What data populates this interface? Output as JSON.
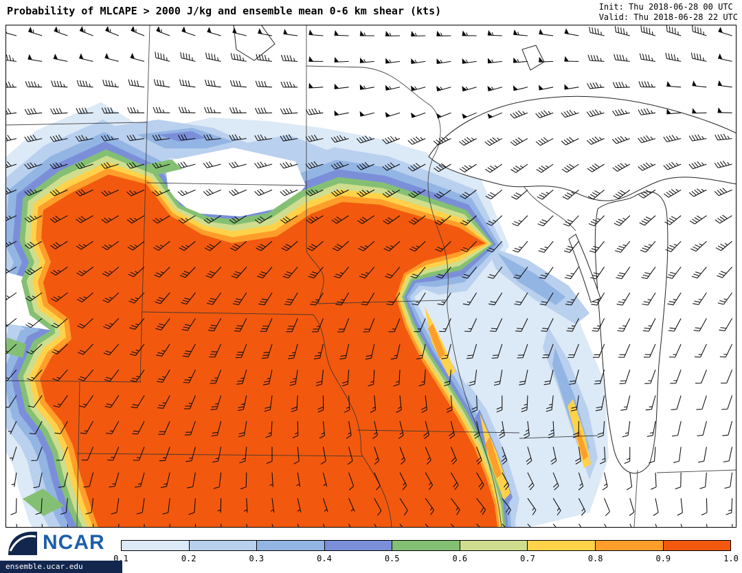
{
  "header": {
    "title": "Probability of MLCAPE > 2000 J/kg and ensemble mean 0-6 km shear (kts)",
    "init_line": "Init: Thu 2018-06-28 00 UTC",
    "valid_line": "Valid: Thu 2018-06-28 22 UTC"
  },
  "footer": {
    "logo_text": "NCAR",
    "site_url": "ensemble.ucar.edu"
  },
  "chart_data": {
    "type": "heatmap",
    "title": "Probability of MLCAPE > 2000 J/kg and ensemble mean 0-6 km shear (kts)",
    "init_time": "Thu 2018-06-28 00 UTC",
    "valid_time": "Thu 2018-06-28 22 UTC",
    "field": "Probability of MLCAPE > 2000 J/kg (shaded)",
    "overlay": "Ensemble mean 0-6 km shear plotted as wind barbs (kts)",
    "region": "Upper Midwest / Northern Plains USA (Dakotas, Nebraska, Kansas, Minnesota, Iowa, Missouri, Wisconsin, Illinois, Michigan, Great Lakes)",
    "legend_position": "bottom",
    "colorbar": {
      "orientation": "horizontal",
      "tick_labels": [
        "0.1",
        "0.2",
        "0.3",
        "0.4",
        "0.5",
        "0.6",
        "0.7",
        "0.8",
        "0.9",
        "1.0"
      ],
      "segment_colors": [
        "#dce9f6",
        "#b9d0ee",
        "#93b5e4",
        "#7b8fd9",
        "#84c073",
        "#cfdd8e",
        "#ffd24a",
        "#ff9e2a",
        "#f2590e"
      ],
      "levels": [
        0.1,
        0.2,
        0.3,
        0.4,
        0.5,
        0.6,
        0.7,
        0.8,
        0.9,
        1.0
      ]
    },
    "summary": "Probabilities near 1.0 (orange-red) cover a broad area from South Dakota and Nebraska across Iowa into Missouri; a yellow-green-blue gradient rims the high-probability core; banded low-to-moderate probabilities (blues) stretch across North Dakota and Minnesota and in NE-SW streaks over Wisconsin and Illinois; winds are strong westerly (40-55 kt barbs) in the north and weaker southerly (10-20 kt) in the south."
  }
}
